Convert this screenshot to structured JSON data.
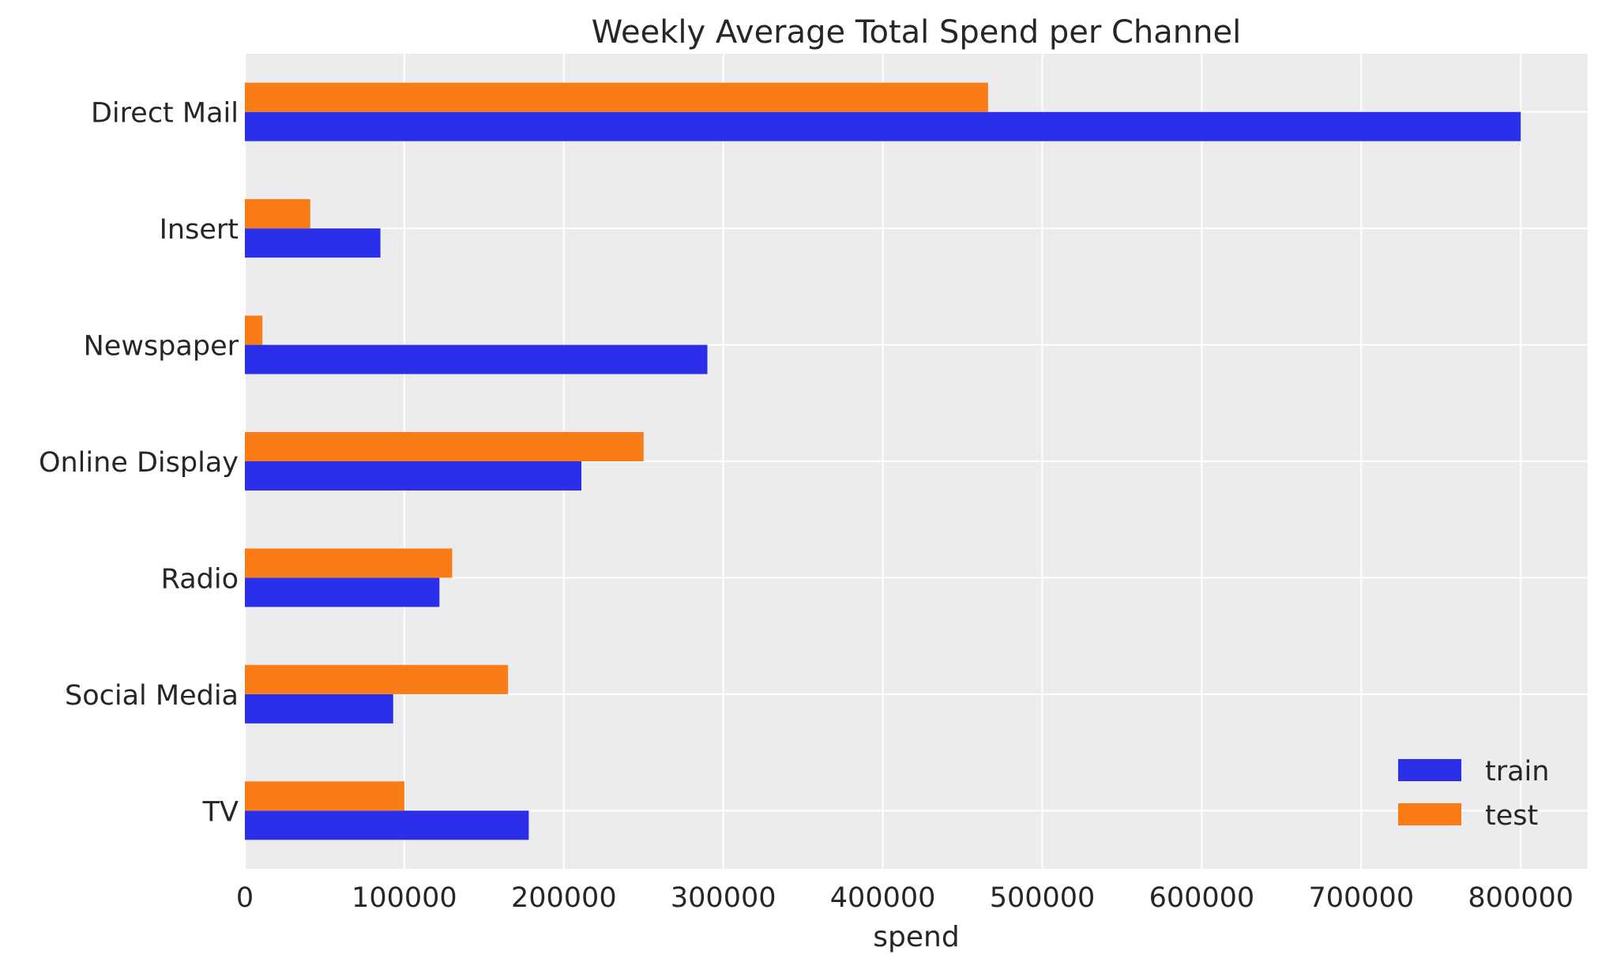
{
  "chart_data": {
    "type": "bar",
    "orientation": "horizontal",
    "title": "Weekly Average Total Spend per Channel",
    "xlabel": "spend",
    "ylabel": "",
    "categories": [
      "Direct Mail",
      "Insert",
      "Newspaper",
      "Online Display",
      "Radio",
      "Social Media",
      "TV"
    ],
    "series": [
      {
        "name": "train",
        "color": "#2c2fea",
        "values": [
          800000,
          85000,
          290000,
          211000,
          122000,
          93000,
          178000
        ]
      },
      {
        "name": "test",
        "color": "#fa7c17",
        "values": [
          466000,
          41000,
          11000,
          250000,
          130000,
          165000,
          100000
        ]
      }
    ],
    "xlim": [
      0,
      842000
    ],
    "xticks": [
      0,
      100000,
      200000,
      300000,
      400000,
      500000,
      600000,
      700000,
      800000
    ],
    "xtick_labels": [
      "0",
      "100000",
      "200000",
      "300000",
      "400000",
      "500000",
      "600000",
      "700000",
      "800000"
    ],
    "grid": true,
    "legend_position": "lower-right",
    "background_color": "#ececef"
  }
}
